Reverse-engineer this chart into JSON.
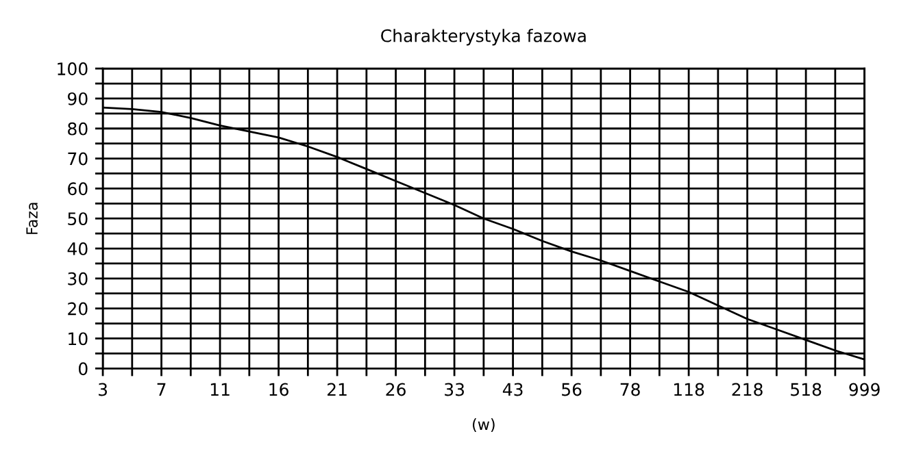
{
  "chart_data": {
    "type": "line",
    "title": "Charakterystyka fazowa",
    "xlabel": "(w)",
    "ylabel": "Faza",
    "categories": [
      "3",
      null,
      "7",
      null,
      "11",
      null,
      "16",
      null,
      "21",
      null,
      "26",
      null,
      "33",
      null,
      "43",
      null,
      "56",
      null,
      "78",
      null,
      "118",
      null,
      "218",
      null,
      "518",
      null,
      "999"
    ],
    "series": [
      {
        "color": "#000000",
        "values": [
          87,
          86.5,
          85.5,
          83.5,
          81,
          79,
          77,
          74,
          70.5,
          66.5,
          62.5,
          58.5,
          54.5,
          50,
          46.5,
          42.5,
          39,
          36,
          32.5,
          29,
          25.5,
          21,
          16.5,
          13,
          9.5,
          6,
          3
        ]
      }
    ],
    "ylim": [
      0,
      100
    ],
    "yticks": [
      0,
      {
        "value": 5,
        "label": null
      },
      10,
      {
        "value": 15,
        "label": null
      },
      20,
      {
        "value": 25,
        "label": null
      },
      30,
      {
        "value": 35,
        "label": null
      },
      40,
      {
        "value": 45,
        "label": null
      },
      50,
      {
        "value": 55,
        "label": null
      },
      60,
      {
        "value": 65,
        "label": null
      },
      70,
      {
        "value": 75,
        "label": null
      },
      80,
      {
        "value": 85,
        "label": null
      },
      90,
      {
        "value": 95,
        "label": null
      },
      100
    ],
    "grid": true,
    "legend": false,
    "marker": "none",
    "line_style": "solid"
  }
}
